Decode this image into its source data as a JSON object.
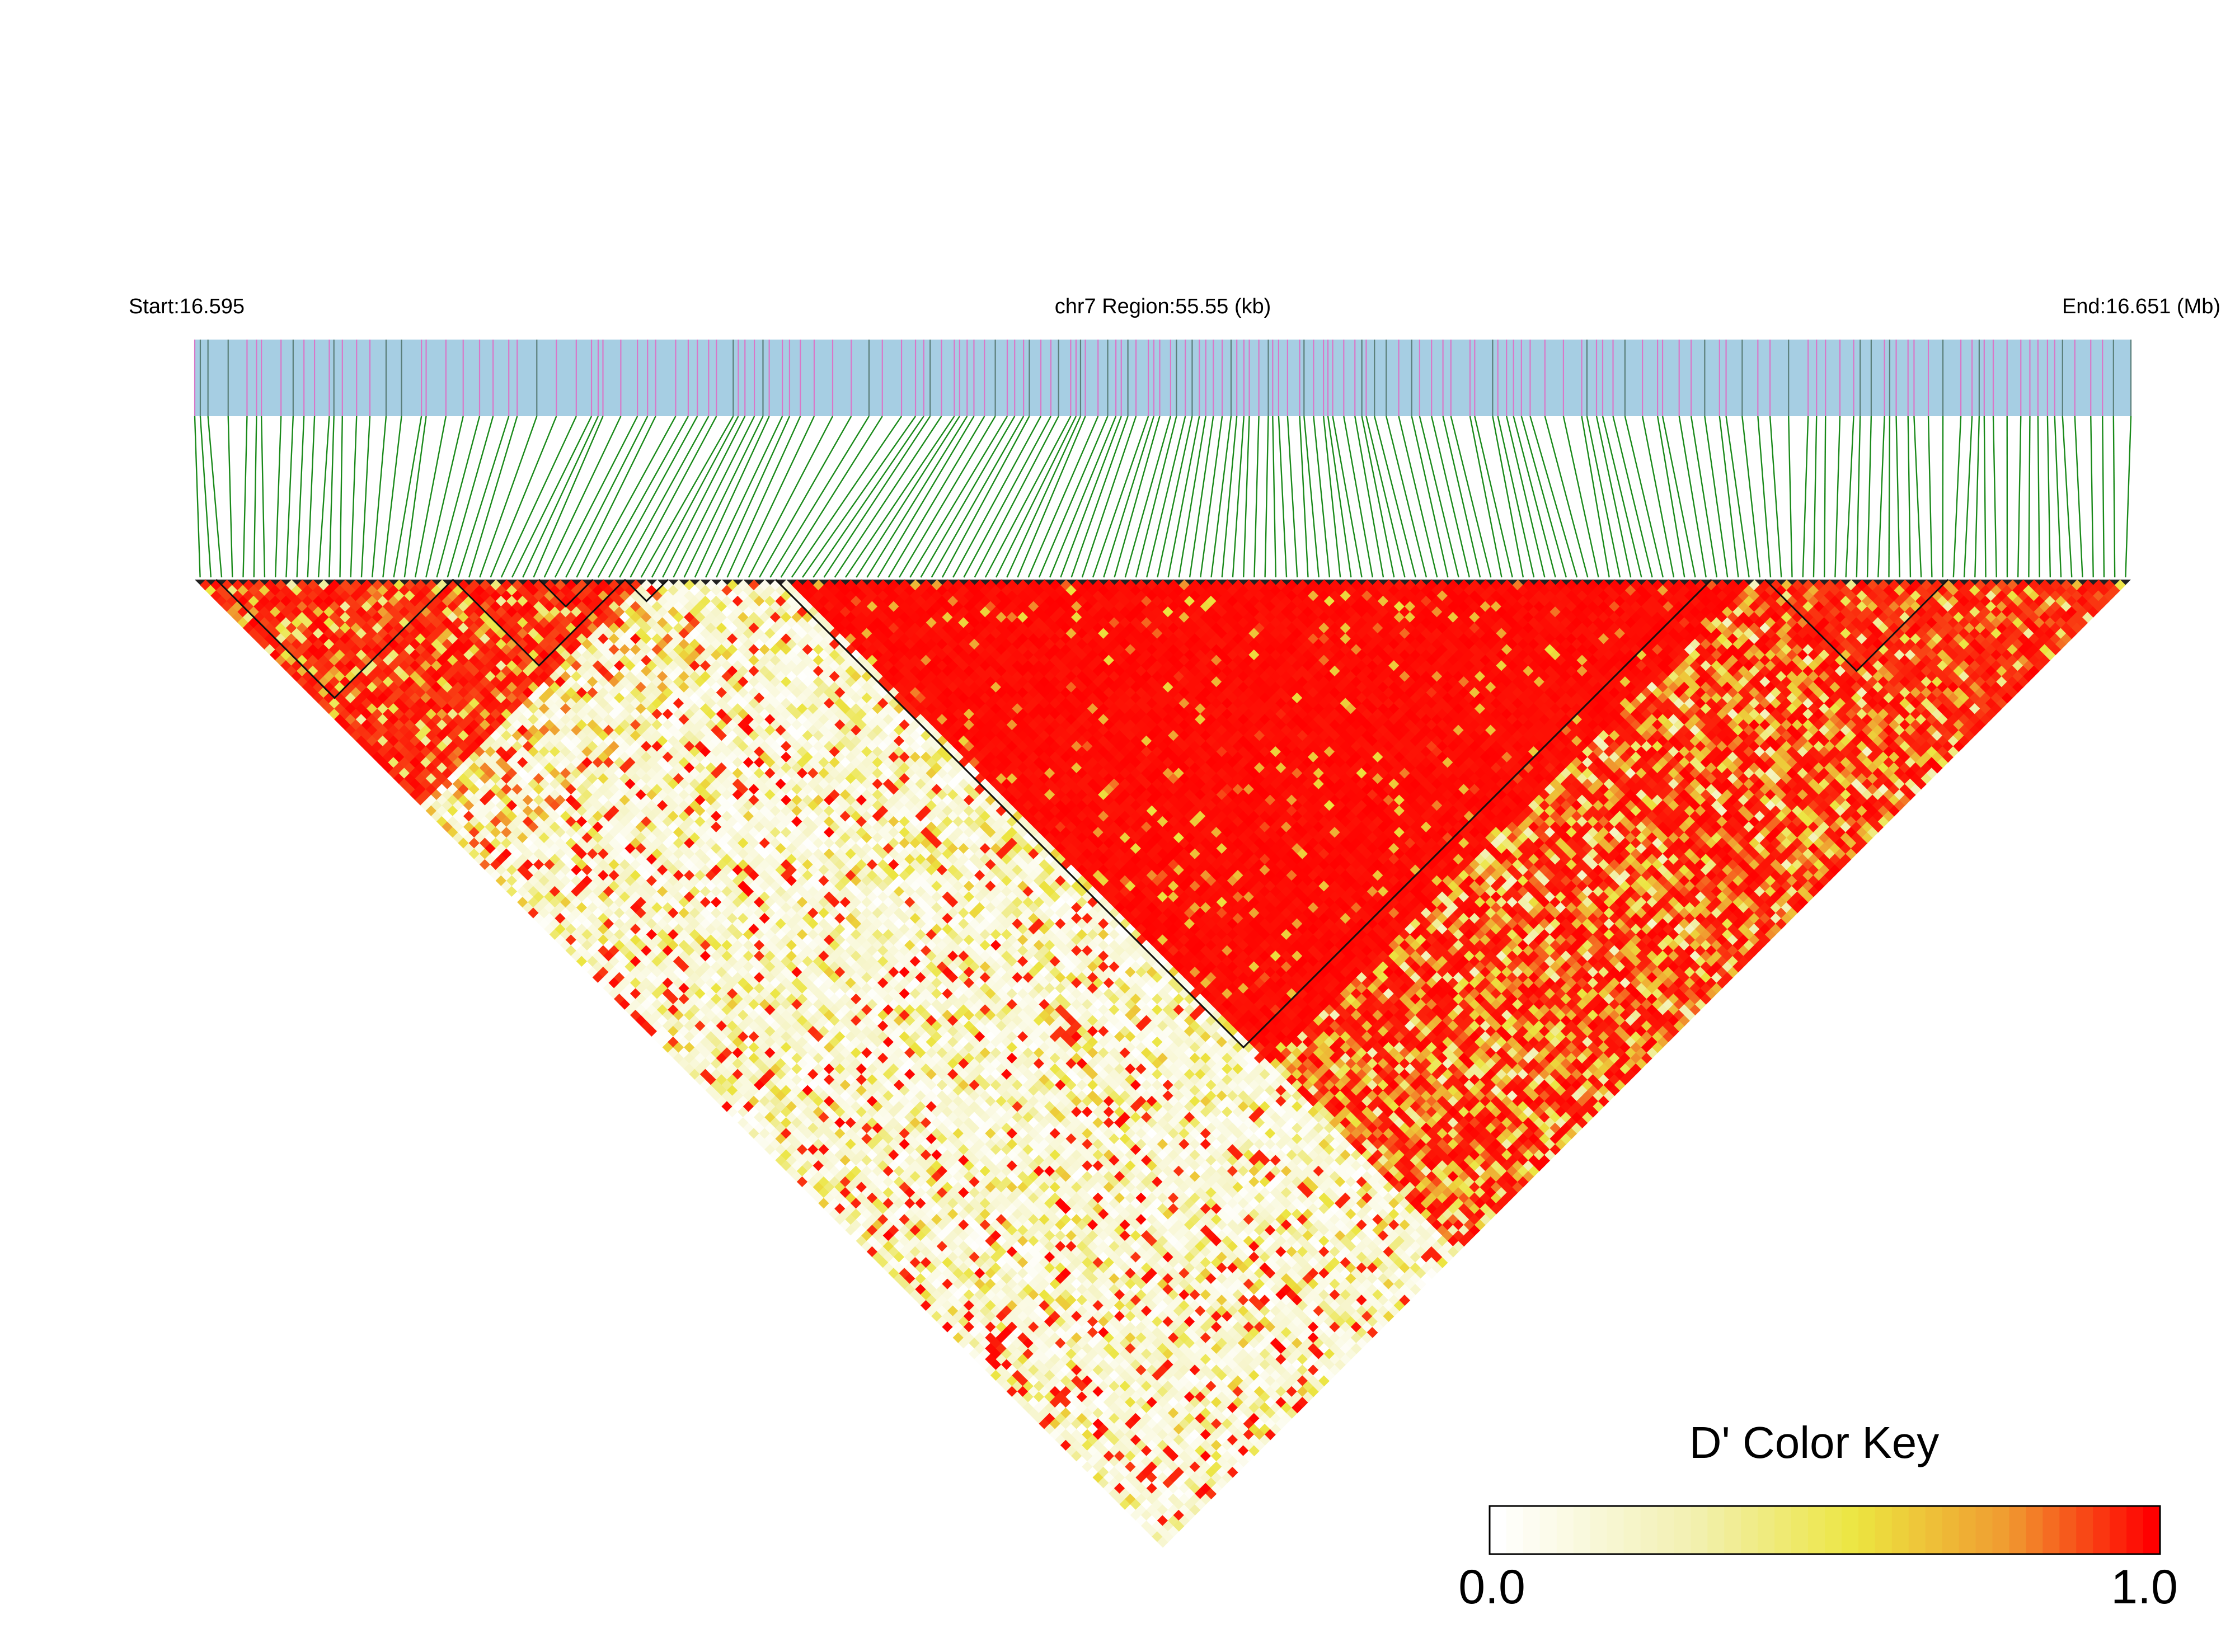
{
  "header": {
    "start_label": "Start:16.595",
    "region_label": "chr7 Region:55.55 (kb)",
    "end_label": "End:16.651 (Mb)"
  },
  "chart_data": {
    "type": "heatmap",
    "subtype": "LD triangle plot",
    "measure": "D'",
    "chromosome": "chr7",
    "region_start_mb": 16.595,
    "region_end_mb": 16.651,
    "region_size_kb": 55.55,
    "snp_count": 180,
    "color_key": {
      "title": "D' Color Key",
      "min_label": "0.0",
      "max_label": "1.0",
      "range": [
        0.0,
        1.0
      ],
      "colors": [
        "#ffffff",
        "#f2f0b0",
        "#ece540",
        "#f09a30",
        "#ff0000"
      ]
    },
    "snp_track_color": "#a6cee3",
    "connector_color": "#1a8a1a",
    "haplotype_blocks": [
      {
        "start_index": 2,
        "end_index": 24
      },
      {
        "start_index": 24,
        "end_index": 40
      },
      {
        "start_index": 32,
        "end_index": 37
      },
      {
        "start_index": 40,
        "end_index": 44
      },
      {
        "start_index": 54,
        "end_index": 141
      },
      {
        "start_index": 146,
        "end_index": 163
      }
    ],
    "ld_structure": [
      {
        "from_index": 0,
        "to_index": 42,
        "mean_dprime": 0.9
      },
      {
        "from_index": 42,
        "to_index": 55,
        "mean_dprime": 0.2
      },
      {
        "from_index": 55,
        "to_index": 145,
        "mean_dprime": 0.98
      },
      {
        "from_index": 145,
        "to_index": 180,
        "mean_dprime": 0.85
      }
    ]
  }
}
